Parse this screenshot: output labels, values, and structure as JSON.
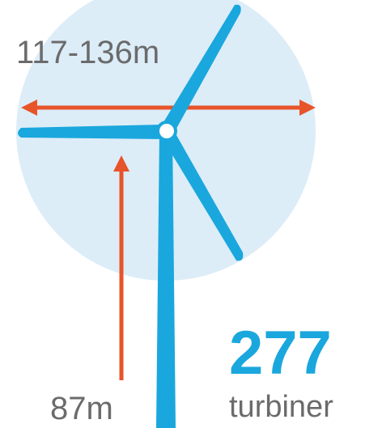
{
  "rotor_diameter": "117-136m",
  "hub_height": "87m",
  "count": "277",
  "count_unit": "turbiner"
}
